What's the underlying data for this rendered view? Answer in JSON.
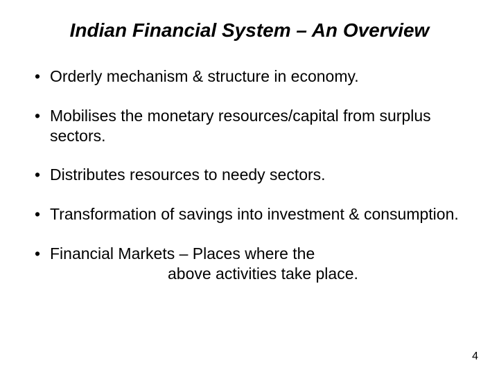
{
  "slide": {
    "title": "Indian Financial System – An Overview",
    "bullets": [
      {
        "text": "Orderly mechanism & structure in economy."
      },
      {
        "text": "Mobilises the monetary resources/capital from surplus sectors."
      },
      {
        "text": "Distributes resources to needy sectors."
      },
      {
        "text": "Transformation of savings into investment & consumption."
      },
      {
        "line1": "Financial Markets – Places where the",
        "line2": "above activities take place."
      }
    ],
    "page_number": "4"
  },
  "styles": {
    "background_color": "#ffffff",
    "text_color": "#000000",
    "title_fontsize": 28,
    "title_style": "bold italic",
    "body_fontsize": 23,
    "font_family": "Arial"
  }
}
